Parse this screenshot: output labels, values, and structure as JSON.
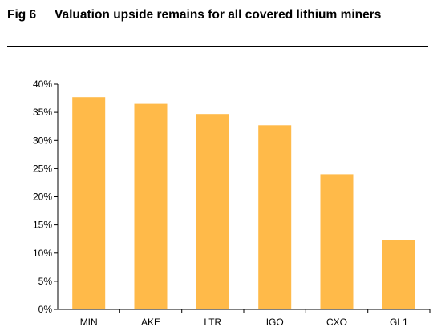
{
  "header": {
    "fig_label": "Fig 6",
    "title": "Valuation upside remains for all covered lithium miners"
  },
  "chart_data": {
    "type": "bar",
    "title": "",
    "xlabel": "",
    "ylabel": "",
    "categories": [
      "MIN",
      "AKE",
      "LTR",
      "IGO",
      "CXO",
      "GL1"
    ],
    "values": [
      37.7,
      36.5,
      34.7,
      32.7,
      24.0,
      12.3
    ],
    "unit": "%",
    "ylim": [
      0,
      40
    ],
    "yticks": [
      0,
      5,
      10,
      15,
      20,
      25,
      30,
      35,
      40
    ],
    "ytick_labels": [
      "0%",
      "5%",
      "10%",
      "15%",
      "20%",
      "25%",
      "30%",
      "35%",
      "40%"
    ],
    "grid": false,
    "legend": "none",
    "bar_color": "#FFBA49"
  }
}
